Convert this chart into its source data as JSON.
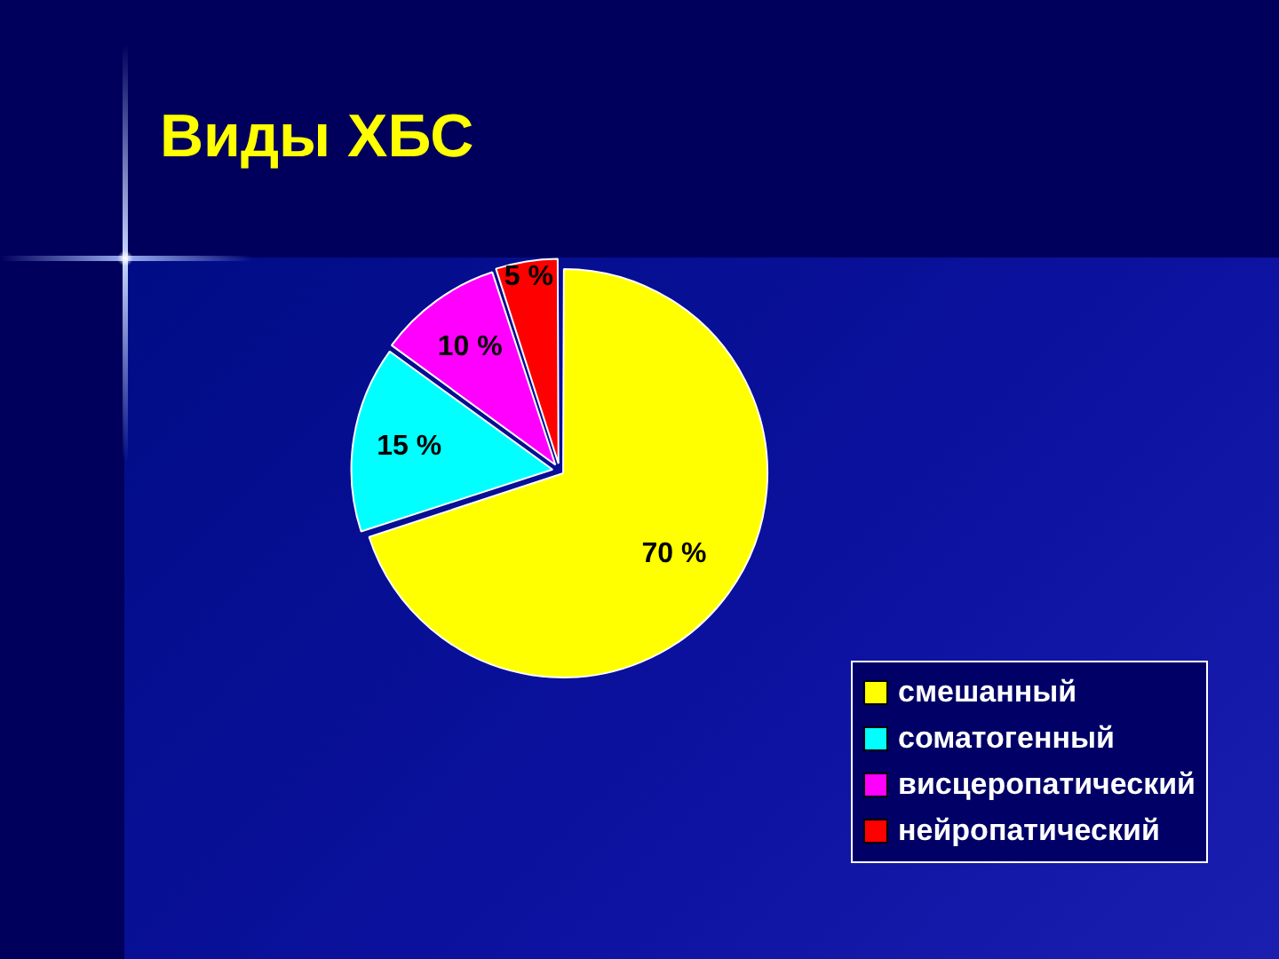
{
  "chart_data": {
    "type": "pie",
    "title": "Виды ХБС",
    "categories": [
      "смешанный",
      "соматогенный",
      "висцеропатический",
      "нейропатический"
    ],
    "values": [
      70,
      15,
      10,
      5
    ],
    "colors": [
      "#ffff00",
      "#00ffff",
      "#ff00ff",
      "#ff0000"
    ],
    "value_labels": [
      "70 %",
      "15 %",
      "10 %",
      "5 %"
    ],
    "legend": "bottom right"
  }
}
